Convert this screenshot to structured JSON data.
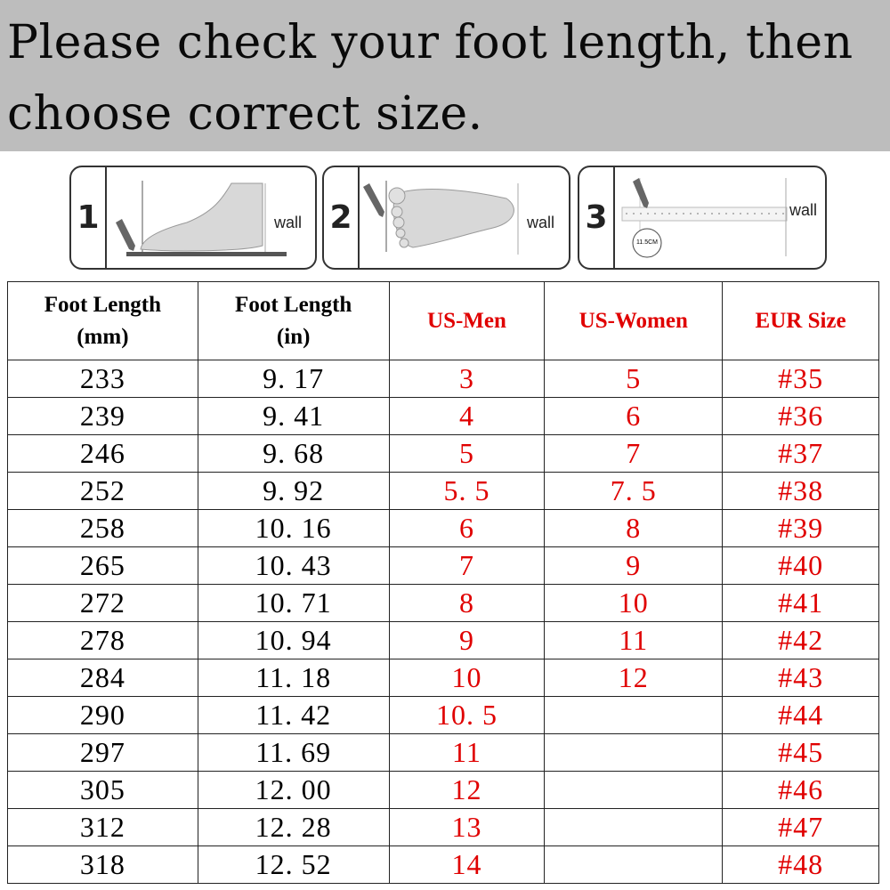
{
  "banner": {
    "title": "Please check your foot length, then choose correct size."
  },
  "steps": [
    {
      "number": "1",
      "wall_label": "wall"
    },
    {
      "number": "2",
      "wall_label": "wall"
    },
    {
      "number": "3",
      "wall_label": "wall",
      "measure_label": "11.5CM"
    }
  ],
  "colors": {
    "banner_bg": "#bdbdbd",
    "accent_red": "#e00000"
  },
  "table": {
    "headers": [
      "Foot Length (mm)",
      "Foot Length (in)",
      "US-Men",
      "US-Women",
      "EUR Size"
    ],
    "rows": [
      [
        "233",
        "9. 17",
        "3",
        "5",
        "#35"
      ],
      [
        "239",
        "9. 41",
        "4",
        "6",
        "#36"
      ],
      [
        "246",
        "9. 68",
        "5",
        "7",
        "#37"
      ],
      [
        "252",
        "9. 92",
        "5. 5",
        "7. 5",
        "#38"
      ],
      [
        "258",
        "10. 16",
        "6",
        "8",
        "#39"
      ],
      [
        "265",
        "10. 43",
        "7",
        "9",
        "#40"
      ],
      [
        "272",
        "10. 71",
        "8",
        "10",
        "#41"
      ],
      [
        "278",
        "10. 94",
        "9",
        "11",
        "#42"
      ],
      [
        "284",
        "11. 18",
        "10",
        "12",
        "#43"
      ],
      [
        "290",
        "11. 42",
        "10. 5",
        "",
        "#44"
      ],
      [
        "297",
        "11. 69",
        "11",
        "",
        "#45"
      ],
      [
        "305",
        "12. 00",
        "12",
        "",
        "#46"
      ],
      [
        "312",
        "12. 28",
        "13",
        "",
        "#47"
      ],
      [
        "318",
        "12. 52",
        "14",
        "",
        "#48"
      ]
    ]
  }
}
